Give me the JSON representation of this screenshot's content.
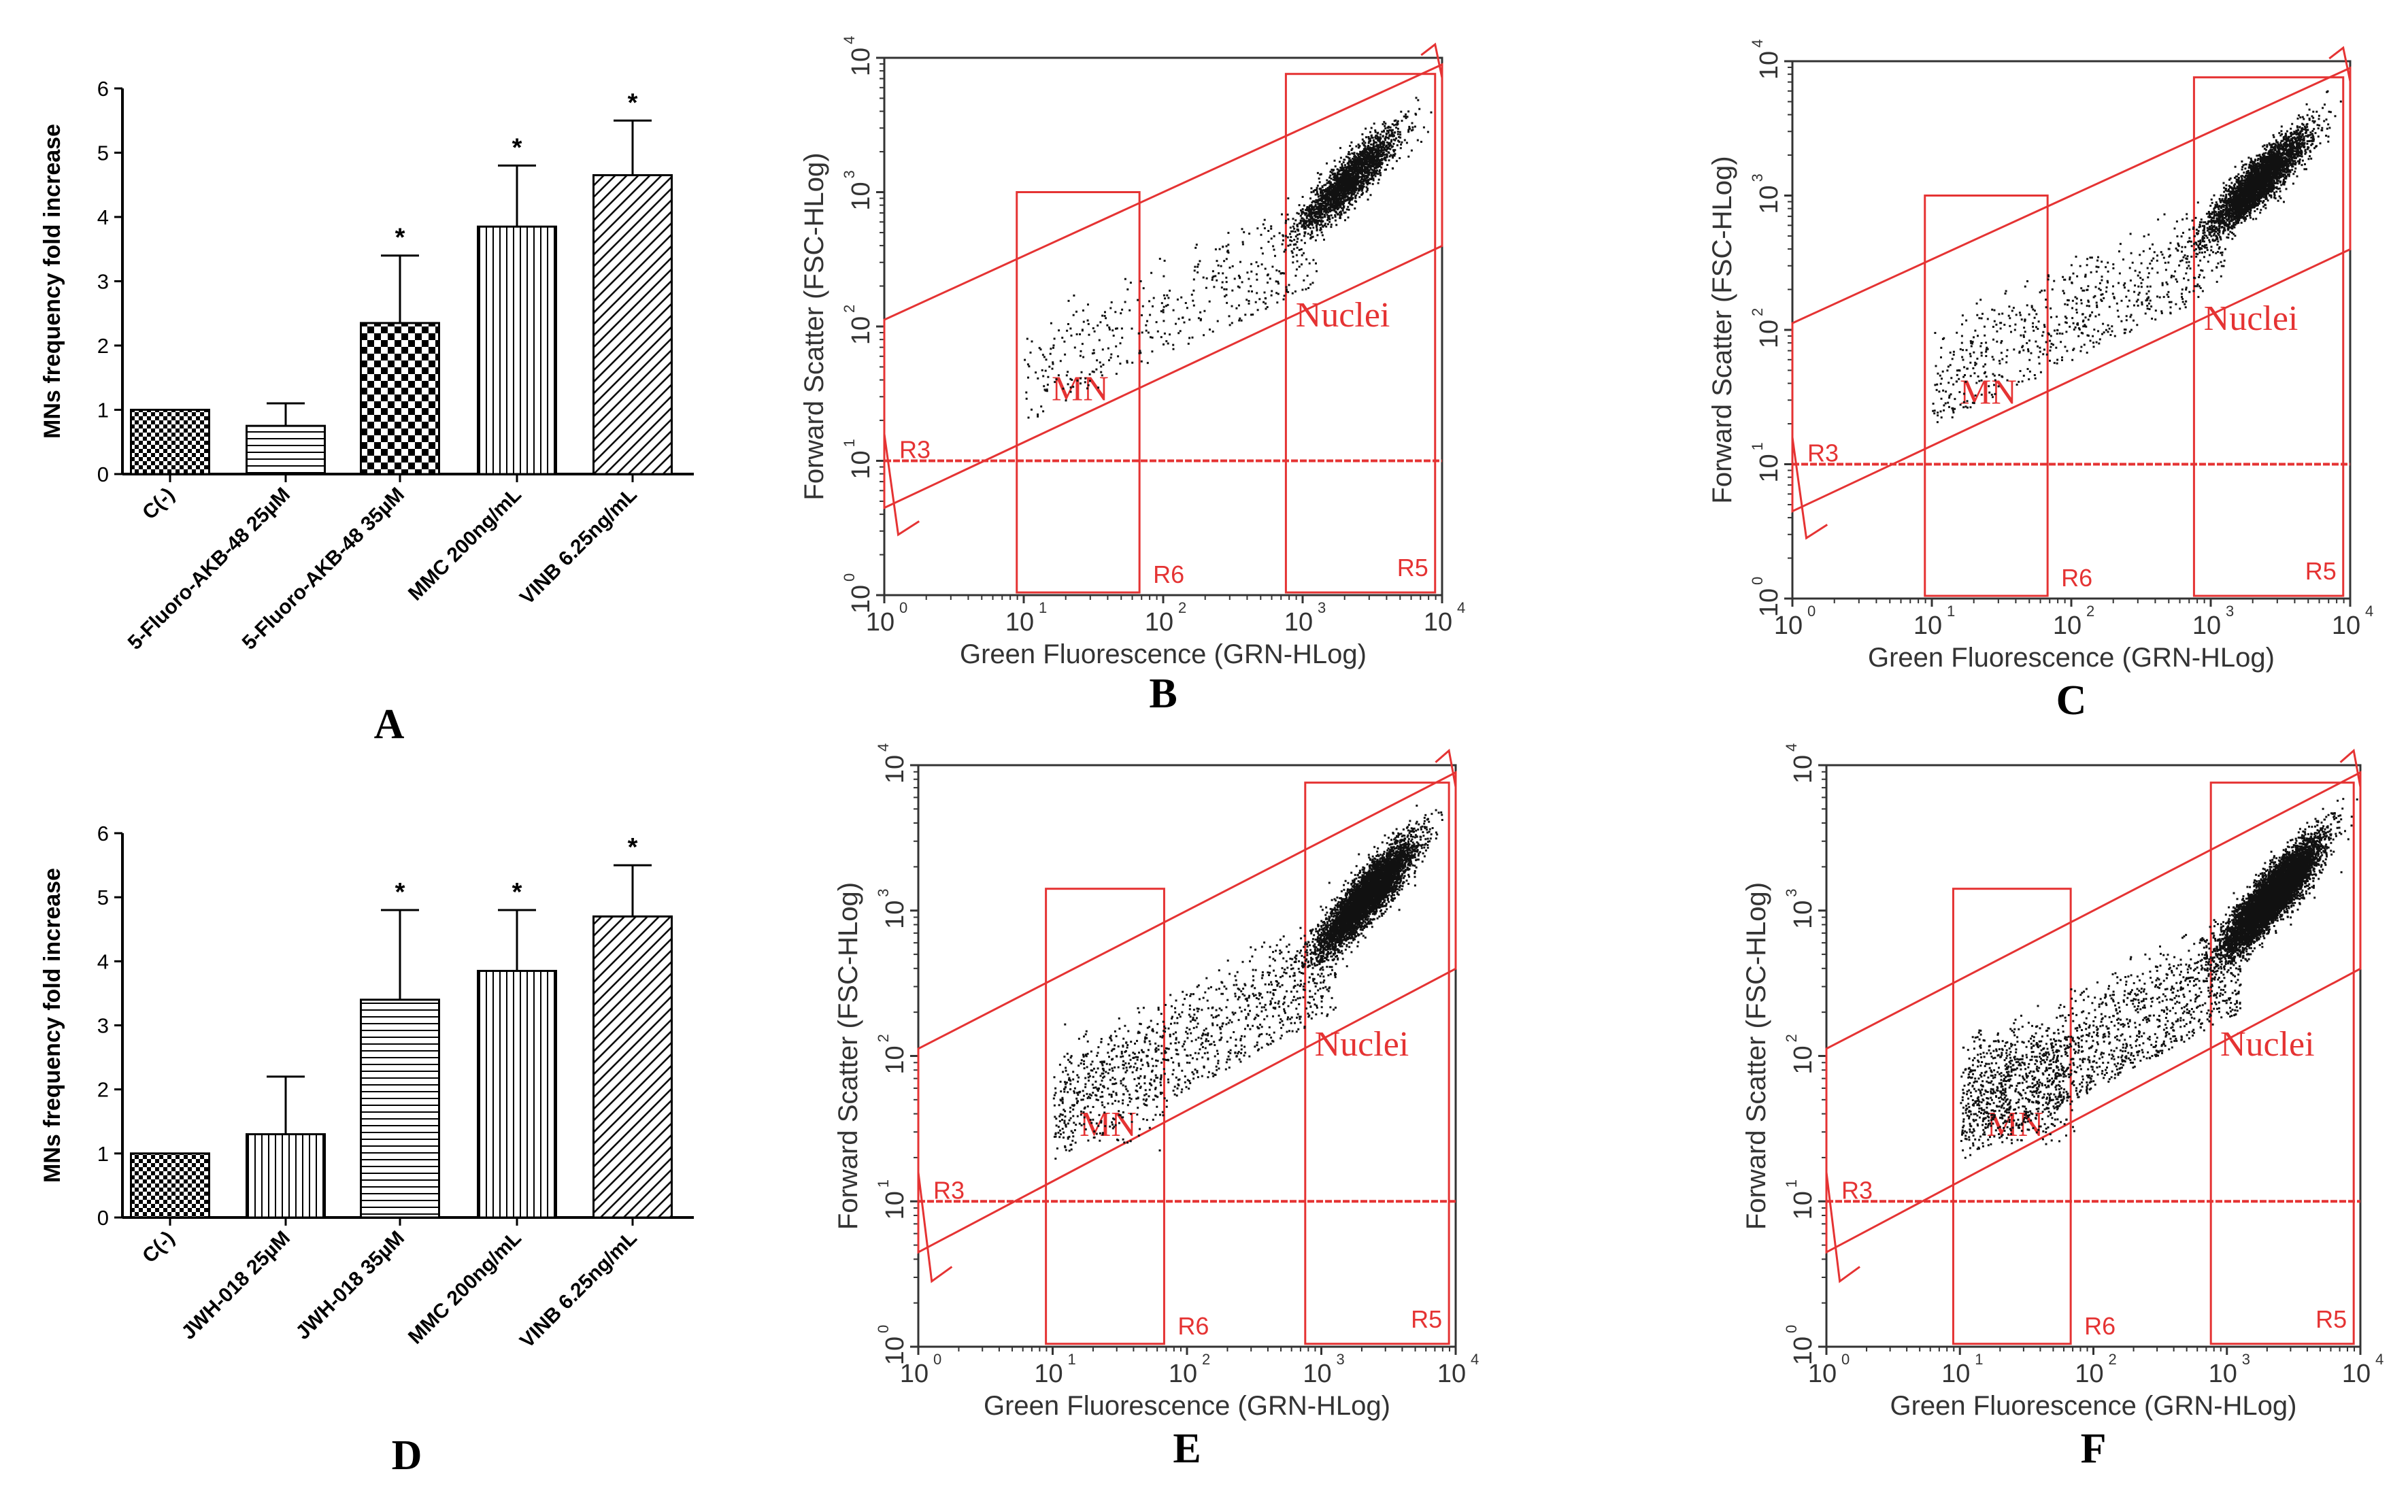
{
  "bar_panels": [
    {
      "letter": "A",
      "ylabel": "MNs frequency fold increase",
      "ylim": [
        0,
        6
      ],
      "yticks": [
        "0",
        "1",
        "2",
        "3",
        "4",
        "5",
        "6"
      ],
      "categories": [
        "C(-)",
        "5-Fluoro-AKB-48 25µM",
        "5-Fluoro-AKB-48 35µM",
        "MMC 200ng/mL",
        "VINB 6.25ng/mL"
      ],
      "values": [
        1.0,
        0.75,
        2.35,
        3.85,
        4.65
      ],
      "errors": [
        0.0,
        0.35,
        1.05,
        0.95,
        0.85
      ],
      "significant": [
        false,
        false,
        true,
        true,
        true
      ],
      "star": "*",
      "patterns": [
        "checker",
        "hlines",
        "bigchecker",
        "vlines",
        "diag"
      ]
    },
    {
      "letter": "D",
      "ylabel": "MNs frequency fold increase",
      "ylim": [
        0,
        6
      ],
      "yticks": [
        "0",
        "1",
        "2",
        "3",
        "4",
        "5",
        "6"
      ],
      "categories": [
        "C(-)",
        "JWH-018 25µM",
        "JWH-018 35µM",
        "MMC 200ng/mL",
        "VINB 6.25ng/mL"
      ],
      "values": [
        1.0,
        1.3,
        3.4,
        3.85,
        4.7
      ],
      "errors": [
        0.0,
        0.9,
        1.4,
        0.95,
        0.8
      ],
      "significant": [
        false,
        false,
        true,
        true,
        true
      ],
      "star": "*",
      "patterns": [
        "checker",
        "vlines",
        "hlines",
        "vlines",
        "diag"
      ]
    }
  ],
  "flow_panels": [
    {
      "letter": "B",
      "xlabel": "Green Fluorescence (GRN-HLog)",
      "ylabel": "Forward Scatter (FSC-HLog)",
      "gates": {
        "r3": "R3",
        "r6": "R6",
        "r5": "R5",
        "mn": "MN",
        "nuclei": "Nuclei"
      },
      "density": "medium"
    },
    {
      "letter": "C",
      "xlabel": "Green Fluorescence (GRN-HLog)",
      "ylabel": "Forward Scatter (FSC-HLog)",
      "gates": {
        "r3": "R3",
        "r6": "R6",
        "r5": "R5",
        "mn": "MN",
        "nuclei": "Nuclei"
      },
      "density": "medium-high"
    },
    {
      "letter": "E",
      "xlabel": "Green Fluorescence (GRN-HLog)",
      "ylabel": "Forward Scatter (FSC-HLog)",
      "gates": {
        "r3": "R3",
        "r6": "R6",
        "r5": "R5",
        "mn": "MN",
        "nuclei": "Nuclei"
      },
      "density": "high"
    },
    {
      "letter": "F",
      "xlabel": "Green Fluorescence (GRN-HLog)",
      "ylabel": "Forward Scatter (FSC-HLog)",
      "gates": {
        "r3": "R3",
        "r6": "R6",
        "r5": "R5",
        "mn": "MN",
        "nuclei": "Nuclei"
      },
      "density": "very-high"
    }
  ],
  "flow_axis": {
    "base": "10",
    "exponents": [
      "0",
      "1",
      "2",
      "3",
      "4"
    ]
  },
  "colors": {
    "gate": "#e53333",
    "dots": "#111111",
    "frame": "#333333"
  },
  "chart_data": [
    {
      "type": "bar",
      "title": "A",
      "categories": [
        "C(-)",
        "5-Fluoro-AKB-48 25µM",
        "5-Fluoro-AKB-48 35µM",
        "MMC 200ng/mL",
        "VINB 6.25ng/mL"
      ],
      "values": [
        1.0,
        0.75,
        2.35,
        3.85,
        4.65
      ],
      "error_bars": [
        0.0,
        0.35,
        1.05,
        0.95,
        0.85
      ],
      "xlabel": "",
      "ylabel": "MNs frequency fold increase",
      "ylim": [
        0,
        6
      ]
    },
    {
      "type": "bar",
      "title": "D",
      "categories": [
        "C(-)",
        "JWH-018 25µM",
        "JWH-018 35µM",
        "MMC 200ng/mL",
        "VINB 6.25ng/mL"
      ],
      "values": [
        1.0,
        1.3,
        3.4,
        3.85,
        4.7
      ],
      "error_bars": [
        0.0,
        0.9,
        1.4,
        0.95,
        0.8
      ],
      "xlabel": "",
      "ylabel": "MNs frequency fold increase",
      "ylim": [
        0,
        6
      ]
    },
    {
      "type": "scatter",
      "title": "B",
      "xlabel": "Green Fluorescence (GRN-HLog)",
      "ylabel": "Forward Scatter (FSC-HLog)",
      "xscale": "log",
      "yscale": "log",
      "xlim": [
        1,
        10000
      ],
      "ylim": [
        1,
        10000
      ]
    },
    {
      "type": "scatter",
      "title": "C",
      "xlabel": "Green Fluorescence (GRN-HLog)",
      "ylabel": "Forward Scatter (FSC-HLog)",
      "xscale": "log",
      "yscale": "log",
      "xlim": [
        1,
        10000
      ],
      "ylim": [
        1,
        10000
      ]
    },
    {
      "type": "scatter",
      "title": "E",
      "xlabel": "Green Fluorescence (GRN-HLog)",
      "ylabel": "Forward Scatter (FSC-HLog)",
      "xscale": "log",
      "yscale": "log",
      "xlim": [
        1,
        10000
      ],
      "ylim": [
        1,
        10000
      ]
    },
    {
      "type": "scatter",
      "title": "F",
      "xlabel": "Green Fluorescence (GRN-HLog)",
      "ylabel": "Forward Scatter (FSC-HLog)",
      "xscale": "log",
      "yscale": "log",
      "xlim": [
        1,
        10000
      ],
      "ylim": [
        1,
        10000
      ]
    }
  ]
}
